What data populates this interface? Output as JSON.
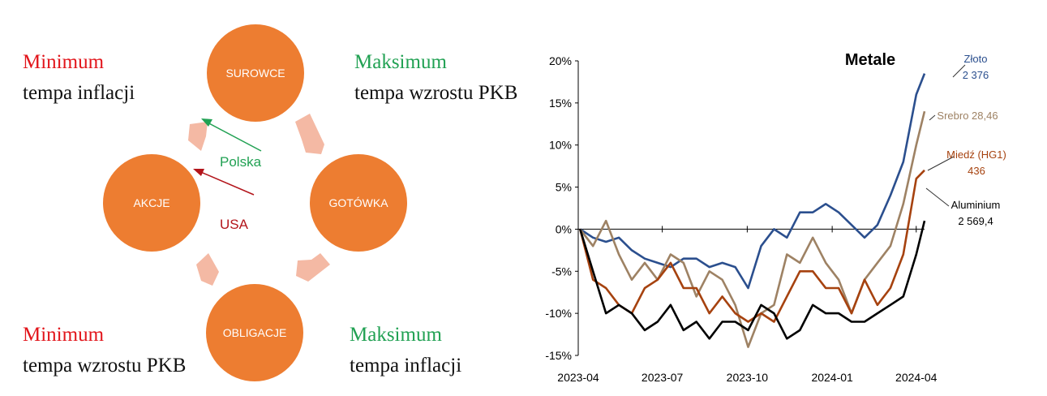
{
  "diagram": {
    "nodes": {
      "top": "SUROWCE",
      "right": "GOTÓWKA",
      "bottom": "OBLIGACJE",
      "left": "AKCJE"
    },
    "corners": {
      "top_left": {
        "title": "Minimum",
        "text": "tempa inflacji",
        "title_color": "#e2151b"
      },
      "top_right": {
        "title": "Maksimum",
        "text": "tempa wzrostu PKB",
        "title_color": "#21a153"
      },
      "bottom_left": {
        "title": "Minimum",
        "text": "tempa wzrostu PKB",
        "title_color": "#e2151b"
      },
      "bottom_right": {
        "title": "Maksimum",
        "text": "tempa inflacji",
        "title_color": "#21a153"
      }
    },
    "pointers": {
      "poland": {
        "label": "Polska",
        "color": "#21a153"
      },
      "usa": {
        "label": "USA",
        "color": "#b3151b"
      }
    },
    "colors": {
      "circle": "#ed7d31",
      "arrow": "#f4b9a4"
    }
  },
  "chart_data": {
    "type": "line",
    "title": "Metale",
    "x_ticks": [
      "2023-04",
      "2023-07",
      "2023-10",
      "2024-01",
      "2024-04"
    ],
    "ylim": [
      -15,
      20
    ],
    "y_ticks": [
      -15,
      -10,
      -5,
      0,
      5,
      10,
      15,
      20
    ],
    "y_tick_labels": [
      "-15%",
      "-10%",
      "-5%",
      "0%",
      "5%",
      "10%",
      "15%",
      "20%"
    ],
    "x": [
      "2023-04-03",
      "2023-04-17",
      "2023-05-01",
      "2023-05-15",
      "2023-05-29",
      "2023-06-12",
      "2023-06-26",
      "2023-07-10",
      "2023-07-24",
      "2023-08-07",
      "2023-08-21",
      "2023-09-04",
      "2023-09-18",
      "2023-10-02",
      "2023-10-16",
      "2023-10-30",
      "2023-11-13",
      "2023-11-27",
      "2023-12-11",
      "2023-12-25",
      "2024-01-08",
      "2024-01-22",
      "2024-02-05",
      "2024-02-19",
      "2024-03-04",
      "2024-03-18",
      "2024-04-01",
      "2024-04-10"
    ],
    "series": [
      {
        "name": "Złoto",
        "value_label": "2 376",
        "color": "#2b4f8e",
        "values": [
          0,
          -1,
          -1.5,
          -1,
          -2.5,
          -3.5,
          -4,
          -4.5,
          -3.5,
          -3.5,
          -4.5,
          -4,
          -4.5,
          -7,
          -2,
          0,
          -1,
          2,
          2,
          3,
          2,
          0.5,
          -1,
          0.5,
          4,
          8,
          16,
          18.5
        ]
      },
      {
        "name": "Srebro",
        "value_label": "28,46",
        "color": "#9e8264",
        "values": [
          0,
          -2,
          1,
          -3,
          -6,
          -4,
          -6,
          -3,
          -4,
          -8,
          -5,
          -6,
          -9,
          -14,
          -10,
          -9,
          -3,
          -4,
          -1,
          -4,
          -6,
          -10,
          -6,
          -4,
          -2,
          3,
          10,
          14
        ]
      },
      {
        "name": "Miedź (HG1)",
        "value_label": "436",
        "color": "#a6420f",
        "values": [
          0,
          -6,
          -7,
          -9,
          -10,
          -7,
          -6,
          -4,
          -7,
          -7,
          -10,
          -8,
          -10,
          -11,
          -10,
          -11,
          -8,
          -5,
          -5,
          -7,
          -7,
          -10,
          -6,
          -9,
          -7,
          -3,
          6,
          7
        ]
      },
      {
        "name": "Aluminium",
        "value_label": "2 569,4",
        "color": "#000000",
        "values": [
          0,
          -5,
          -10,
          -9,
          -10,
          -12,
          -11,
          -9,
          -12,
          -11,
          -13,
          -11,
          -11,
          -12,
          -9,
          -10,
          -13,
          -12,
          -9,
          -10,
          -10,
          -11,
          -11,
          -10,
          -9,
          -8,
          -3,
          1
        ]
      }
    ],
    "legend_position": "right"
  }
}
